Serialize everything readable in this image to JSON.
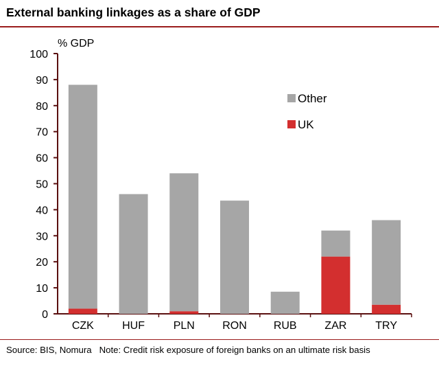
{
  "title": "External banking linkages as a share of GDP",
  "footer": {
    "source": "Source: BIS, Nomura",
    "note": "Note: Credit risk exposure of foreign banks on an ultimate risk basis"
  },
  "chart_data": {
    "type": "bar",
    "stacked": true,
    "title": "External banking linkages as a share of GDP",
    "ylabel": "% GDP",
    "xlabel": "",
    "ylim": [
      0,
      100
    ],
    "yticks": [
      0,
      10,
      20,
      30,
      40,
      50,
      60,
      70,
      80,
      90,
      100
    ],
    "grid": false,
    "legend": "upper-right",
    "categories": [
      "CZK",
      "HUF",
      "PLN",
      "RON",
      "RUB",
      "ZAR",
      "TRY"
    ],
    "series": [
      {
        "name": "UK",
        "color": "#d32f2f",
        "values": [
          2,
          0,
          1,
          0,
          0,
          22,
          3.5
        ]
      },
      {
        "name": "Other",
        "color": "#a6a6a6",
        "values": [
          86,
          46,
          53,
          43.5,
          8.5,
          10,
          32.5
        ]
      }
    ],
    "legend_order": [
      "Other",
      "UK"
    ]
  }
}
